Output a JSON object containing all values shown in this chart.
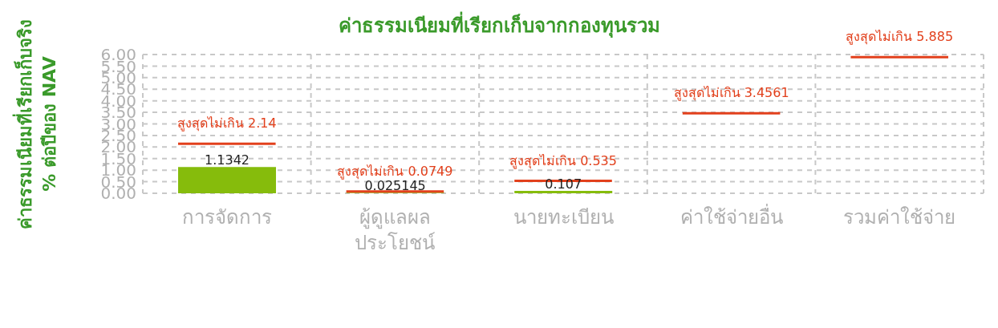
{
  "chart_data": {
    "type": "bar",
    "title": "ค่าธรรมเนียมที่เรียกเก็บจากกองทุนรวม",
    "ylabel": "ค่าธรรมเนียมที่เรียกเก็บจริง\n% ต่อปีของ NAV",
    "categories": [
      "การจัดการ",
      "ผู้ดูแลผล\nประโยชน์",
      "นายทะเบียน",
      "ค่าใช้จ่ายอื่น",
      "รวมค่าใช้จ่าย"
    ],
    "series": [
      {
        "type": "bar",
        "color": "#86bc0c",
        "values": [
          1.1342,
          0.025145,
          0.107,
          null,
          null
        ],
        "value_labels": [
          "1.1342",
          "0.025145",
          "0.107",
          null,
          null
        ]
      }
    ],
    "ref_lines": [
      {
        "axis": "y",
        "value": 2.14,
        "label": "สูงสุดไม่เกิน 2.14",
        "color": "#e2401c"
      },
      {
        "axis": "y",
        "value": 0.0749,
        "label": "สูงสุดไม่เกิน 0.0749",
        "color": "#e2401c"
      },
      {
        "axis": "y",
        "value": 0.535,
        "label": "สูงสุดไม่เกิน 0.535",
        "color": "#e2401c"
      },
      {
        "axis": "y",
        "value": 3.4561,
        "label": "สูงสุดไม่เกิน 3.4561",
        "color": "#e2401c"
      },
      {
        "axis": "y",
        "value": 5.885,
        "label": "สูงสุดไม่เกิน 5.885",
        "color": "#e2401c"
      }
    ],
    "ylim": [
      0,
      6
    ],
    "yticks": [
      {
        "value": 0,
        "label": "0.00"
      },
      {
        "value": 0.5,
        "label": "0.50"
      },
      {
        "value": 1,
        "label": "1.00"
      },
      {
        "value": 1.5,
        "label": "1.50"
      },
      {
        "value": 2,
        "label": "2.00"
      },
      {
        "value": 2.5,
        "label": "2.50"
      },
      {
        "value": 3,
        "label": "3.00"
      },
      {
        "value": 3.5,
        "label": "3.50"
      },
      {
        "value": 4,
        "label": "4.00"
      },
      {
        "value": 4.5,
        "label": "4.50"
      },
      {
        "value": 5,
        "label": "5.00"
      },
      {
        "value": 5.5,
        "label": "5.50"
      },
      {
        "value": 6,
        "label": "6.00"
      }
    ],
    "grid": true
  }
}
